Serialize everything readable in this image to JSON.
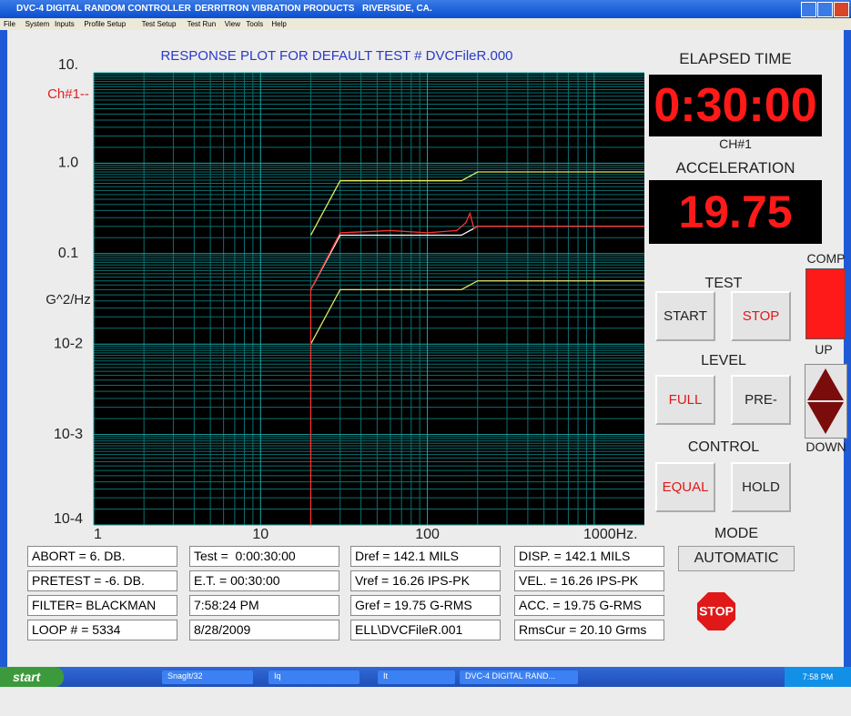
{
  "window": {
    "title": [
      "DVC-4 DIGITAL RANDOM CONTROLLER",
      "DERRITRON VIBRATION PRODUCTS",
      "RIVERSIDE, CA."
    ]
  },
  "menu": [
    "File",
    "System",
    "Inputs",
    "Profile Setup",
    "Test Setup",
    "Test Run",
    "View",
    "Tools",
    "Help"
  ],
  "chart_data": {
    "type": "line",
    "title": "RESPONSE PLOT FOR DEFAULT TEST # DVCFileR.000",
    "ylabel": "G^2/Hz",
    "annotation": "Ch#1--",
    "xscale": "log",
    "yscale": "log",
    "grid": true,
    "minor_grid": true,
    "xlim": [
      1,
      2000
    ],
    "ylim": [
      0.0001,
      10
    ],
    "xticks": [
      1,
      10,
      100,
      {
        "value": 1000,
        "label": "1000Hz."
      }
    ],
    "yticks": [
      {
        "value": 10,
        "label": "10."
      },
      {
        "value": 1,
        "label": "1.0"
      },
      0.1,
      {
        "value": 0.01,
        "label": "10-2"
      },
      {
        "value": 0.001,
        "label": "10-3"
      },
      {
        "value": 0.0001,
        "label": "10-4"
      }
    ],
    "series": [
      {
        "color": "#e8e860",
        "x": [
          20,
          30,
          160,
          200,
          2000
        ],
        "values": [
          0.16,
          0.64,
          0.64,
          0.8,
          0.8
        ]
      },
      {
        "color": "#e8e860",
        "x": [
          20,
          30,
          160,
          200,
          2000
        ],
        "values": [
          0.01,
          0.04,
          0.04,
          0.05,
          0.05
        ]
      },
      {
        "color": "#ffffff",
        "x": [
          20,
          30,
          160,
          200,
          2000
        ],
        "values": [
          0.04,
          0.16,
          0.16,
          0.2,
          0.2
        ]
      },
      {
        "color": "#ff3030",
        "x": [
          20,
          20,
          30,
          60,
          100,
          150,
          170,
          180,
          190,
          200,
          2000
        ],
        "values": [
          0.0001,
          0.04,
          0.17,
          0.18,
          0.17,
          0.18,
          0.22,
          0.28,
          0.19,
          0.2,
          0.2
        ]
      }
    ]
  },
  "elapsed": {
    "label": "ELAPSED TIME",
    "value": "0:30:00"
  },
  "channel": {
    "label": "CH#1",
    "quantity": "ACCELERATION",
    "value": "19.75"
  },
  "test": {
    "label": "TEST",
    "buttons": [
      "START",
      "STOP"
    ]
  },
  "level": {
    "label": "LEVEL",
    "buttons": [
      "FULL",
      "PRE-"
    ]
  },
  "control": {
    "label": "CONTROL",
    "buttons": [
      "EQUAL",
      "HOLD"
    ]
  },
  "comp": "COMP",
  "up": "UP",
  "down": "DOWN",
  "mode": {
    "label": "MODE",
    "value": "AUTOMATIC"
  },
  "stop_sign": "STOP",
  "info": {
    "rows": [
      [
        "ABORT = 6. DB.",
        "Test =  0:00:30:00",
        "Dref = 142.1 MILS",
        "DISP. = 142.1 MILS"
      ],
      [
        "PRETEST = -6. DB.",
        "E.T. = 00:30:00",
        "Vref = 16.26 IPS-PK",
        "VEL. = 16.26 IPS-PK"
      ],
      [
        "FILTER= BLACKMAN",
        "7:58:24 PM",
        "Gref = 19.75 G-RMS",
        "ACC. = 19.75 G-RMS"
      ],
      [
        "LOOP # = 5334",
        "8/28/2009",
        "ELL\\DVCFileR.001",
        "RmsCur = 20.10 Grms"
      ]
    ]
  },
  "taskbar": {
    "start": "start",
    "items": [
      "SnagIt/32",
      "Iq",
      "It",
      "DVC-4 DIGITAL RAND..."
    ],
    "clock": "7:58 PM"
  }
}
